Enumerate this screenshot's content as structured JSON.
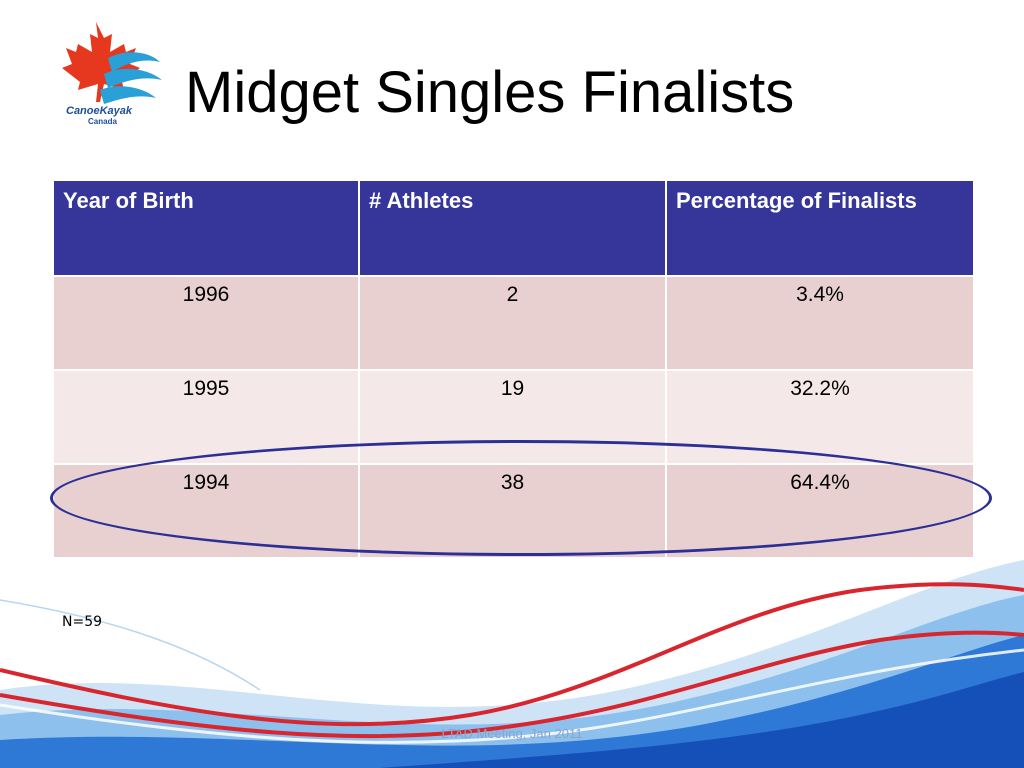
{
  "slide": {
    "title": "Midget Singles Finalists",
    "note": "N=59",
    "footer": "LTAD Meeting, Jan 2011"
  },
  "logo": {
    "name": "maple-leaf-kayak-logo",
    "line1": "CanoeKayak",
    "line2": "Canada",
    "colors": {
      "leaf": "#e5381f",
      "water": "#2aa0d8",
      "text": "#1d4e9a"
    }
  },
  "table": {
    "headers": [
      "Year of Birth",
      "# Athletes",
      "Percentage of Finalists"
    ],
    "rows": [
      [
        "1996",
        "2",
        "3.4%"
      ],
      [
        "1995",
        "19",
        "32.2%"
      ],
      [
        "1994",
        "38",
        "64.4%"
      ]
    ],
    "highlighted_row": 2
  },
  "colors": {
    "header_bg": "#35359a",
    "row_odd": "#e9d0d0",
    "row_even": "#f4e8e8",
    "highlight_outline": "#2b2f96",
    "wave_red": "#d8262e",
    "wave_blue": "#1d5fc4"
  }
}
